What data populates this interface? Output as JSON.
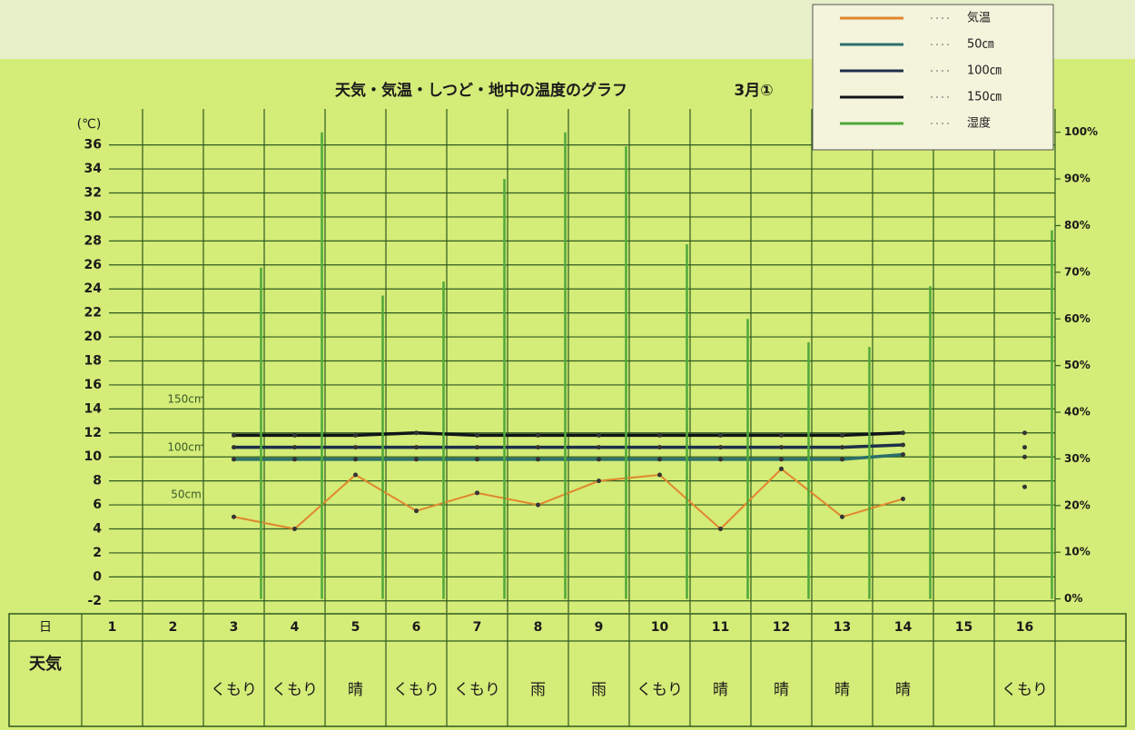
{
  "chart_data": {
    "type": "line",
    "title": "天気・気温・しつど・地中の温度のグラフ",
    "subtitle": "3月①",
    "y_axis_label": "(℃)",
    "day_label": "日",
    "weather_label": "天気",
    "categories": [
      "1",
      "2",
      "3",
      "4",
      "5",
      "6",
      "7",
      "8",
      "9",
      "10",
      "11",
      "12",
      "13",
      "14",
      "15",
      "16"
    ],
    "weather": [
      null,
      null,
      "くもり",
      "くもり",
      "晴",
      "くもり",
      "くもり",
      "雨",
      "雨",
      "くもり",
      "晴",
      "晴",
      "晴",
      "晴",
      null,
      "くもり"
    ],
    "series": [
      {
        "name": "気温",
        "color": "#e0862e",
        "style": "line",
        "values": [
          null,
          null,
          5,
          4,
          8.5,
          5.5,
          7,
          6,
          8,
          8.5,
          4,
          9,
          5,
          6.5,
          null,
          7.5
        ]
      },
      {
        "name": "50㎝",
        "color": "#2a6f6a",
        "style": "line",
        "values": [
          null,
          null,
          9.8,
          9.8,
          9.8,
          9.8,
          9.8,
          9.8,
          9.8,
          9.8,
          9.8,
          9.8,
          9.8,
          10.2,
          null,
          10
        ]
      },
      {
        "name": "100㎝",
        "color": "#1d2f4a",
        "style": "line",
        "values": [
          null,
          null,
          10.8,
          10.8,
          10.8,
          10.8,
          10.8,
          10.8,
          10.8,
          10.8,
          10.8,
          10.8,
          10.8,
          11,
          null,
          10.8
        ]
      },
      {
        "name": "150㎝",
        "color": "#101418",
        "style": "line",
        "values": [
          null,
          null,
          11.8,
          11.8,
          11.8,
          12,
          11.8,
          11.8,
          11.8,
          11.8,
          11.8,
          11.8,
          11.8,
          12,
          null,
          12
        ]
      },
      {
        "name": "湿度",
        "color": "#4fa83a",
        "style": "stem",
        "axis": "y2",
        "values": [
          null,
          null,
          71,
          100,
          65,
          68,
          90,
          100,
          97,
          76,
          60,
          55,
          54,
          67,
          null,
          79
        ]
      }
    ],
    "annotations": [
      "150cm",
      "100cm",
      "50cm"
    ],
    "ylim": [
      -3,
      39
    ],
    "yticks": [
      -2,
      0,
      2,
      4,
      6,
      8,
      10,
      12,
      14,
      16,
      18,
      20,
      22,
      24,
      26,
      28,
      30,
      32,
      34,
      36
    ],
    "y2lim": [
      -3,
      105
    ],
    "y2ticks": [
      {
        "value": 0,
        "label": "0%"
      },
      {
        "value": 10,
        "label": "10%"
      },
      {
        "value": 20,
        "label": "20%"
      },
      {
        "value": 30,
        "label": "30%"
      },
      {
        "value": 40,
        "label": "40%"
      },
      {
        "value": 50,
        "label": "50%"
      },
      {
        "value": 60,
        "label": "60%"
      },
      {
        "value": 70,
        "label": "70%"
      },
      {
        "value": 80,
        "label": "80%"
      },
      {
        "value": 90,
        "label": "90%"
      },
      {
        "value": 100,
        "label": "100%"
      }
    ],
    "grid": true
  }
}
